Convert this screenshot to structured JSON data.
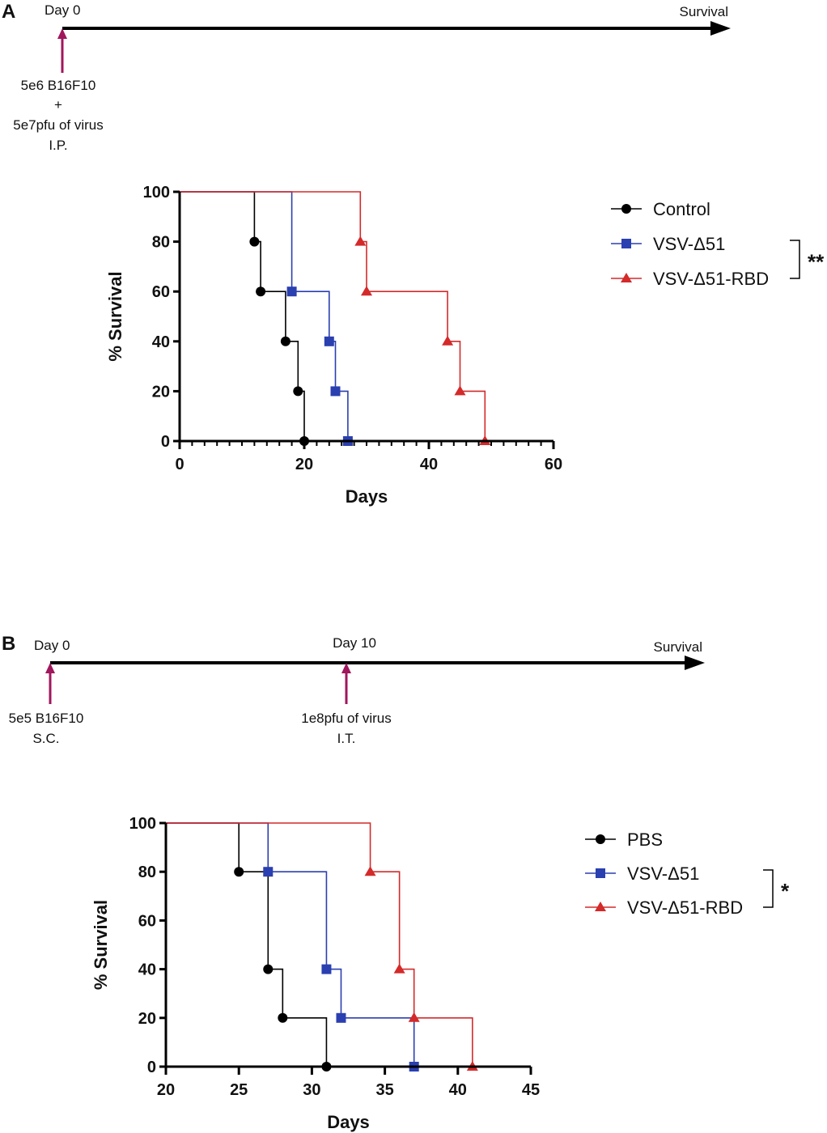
{
  "panel_a": {
    "label": "A",
    "timeline": {
      "start_label": "Day 0",
      "end_label": "Survival",
      "injection_lines": [
        "5e6 B16F10",
        "+",
        "5e7pfu of virus",
        "I.P."
      ]
    }
  },
  "panel_b": {
    "label": "B",
    "timeline": {
      "start_label": "Day 0",
      "mid_label": "Day 10",
      "end_label": "Survival",
      "injection1_lines": [
        "5e5 B16F10",
        "S.C."
      ],
      "injection2_lines": [
        "1e8pfu of virus",
        "I.T."
      ]
    }
  },
  "colors": {
    "arrow": "#a0175d",
    "control": "#000000",
    "vsv": "#2a3fb0",
    "rbd": "#d42a2a"
  },
  "chart_data": [
    {
      "type": "line",
      "subtype": "kaplan-meier survival",
      "ylabel": "% Survival",
      "xlabel": "Days",
      "xlim": [
        0,
        60
      ],
      "ylim": [
        0,
        100
      ],
      "xticks": [
        0,
        20,
        40,
        60
      ],
      "yticks": [
        0,
        20,
        40,
        60,
        80,
        100
      ],
      "significance": "**",
      "series": [
        {
          "name": "Control",
          "marker": "circle",
          "color": "#000000",
          "events": [
            [
              12,
              80
            ],
            [
              13,
              60
            ],
            [
              17,
              40
            ],
            [
              19,
              20
            ],
            [
              20,
              0
            ]
          ]
        },
        {
          "name": "VSV-Δ51",
          "marker": "square",
          "color": "#2a3fb0",
          "events": [
            [
              18,
              60
            ],
            [
              24,
              40
            ],
            [
              25,
              20
            ],
            [
              27,
              0
            ]
          ]
        },
        {
          "name": "VSV-Δ51-RBD",
          "marker": "triangle",
          "color": "#d42a2a",
          "events": [
            [
              29,
              80
            ],
            [
              30,
              60
            ],
            [
              43,
              40
            ],
            [
              45,
              20
            ],
            [
              49,
              0
            ]
          ]
        }
      ]
    },
    {
      "type": "line",
      "subtype": "kaplan-meier survival",
      "ylabel": "% Survival",
      "xlabel": "Days",
      "xlim": [
        20,
        45
      ],
      "ylim": [
        0,
        100
      ],
      "xticks": [
        20,
        25,
        30,
        35,
        40,
        45
      ],
      "yticks": [
        0,
        20,
        40,
        60,
        80,
        100
      ],
      "significance": "*",
      "series": [
        {
          "name": "PBS",
          "marker": "circle",
          "color": "#000000",
          "events": [
            [
              25,
              80
            ],
            [
              27,
              40
            ],
            [
              28,
              20
            ],
            [
              31,
              0
            ]
          ]
        },
        {
          "name": "VSV-Δ51",
          "marker": "square",
          "color": "#2a3fb0",
          "events": [
            [
              27,
              80
            ],
            [
              31,
              40
            ],
            [
              32,
              20
            ],
            [
              37,
              0
            ]
          ]
        },
        {
          "name": "VSV-Δ51-RBD",
          "marker": "triangle",
          "color": "#d42a2a",
          "events": [
            [
              34,
              80
            ],
            [
              36,
              40
            ],
            [
              37,
              20
            ],
            [
              41,
              0
            ]
          ]
        }
      ]
    }
  ]
}
